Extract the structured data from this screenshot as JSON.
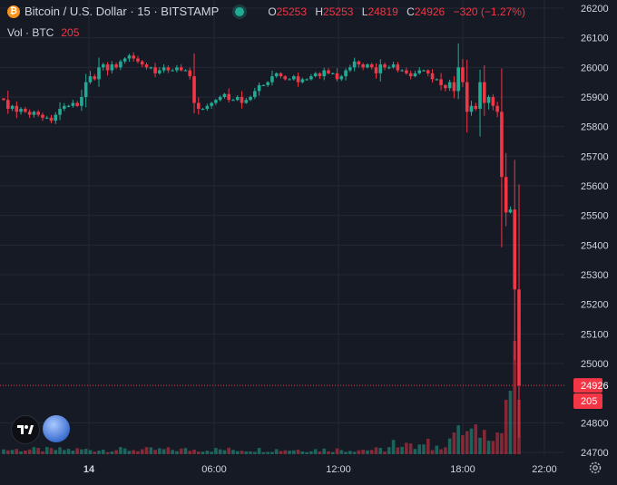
{
  "header": {
    "coin_symbol": "₿",
    "title": "Bitcoin / U.S. Dollar · 15 · BITSTAMP",
    "ohlc": {
      "o_label": "O",
      "o_value": "25253",
      "h_label": "H",
      "h_value": "25253",
      "l_label": "L",
      "l_value": "24819",
      "c_label": "C",
      "c_value": "24926",
      "change": "−320 (−1.27%)"
    },
    "volume": {
      "label": "Vol · BTC",
      "value": "205"
    }
  },
  "price_axis": {
    "ticks": [
      "26200",
      "26100",
      "26000",
      "25900",
      "25800",
      "25700",
      "25600",
      "25500",
      "25400",
      "25300",
      "25200",
      "25100",
      "25000",
      "24800",
      "24700"
    ]
  },
  "time_axis": {
    "ticks": [
      "14",
      "06:00",
      "12:00",
      "18:00",
      "22:00"
    ]
  },
  "price_label": "24926",
  "volume_label": "205",
  "icons": [
    "tradingview-logo-icon",
    "moon-avatar-icon",
    "settings-gear-icon"
  ],
  "colors": {
    "background": "#161a25",
    "up": "#22ab94",
    "down": "#f23645",
    "grid": "#242836",
    "text": "#d1d4dc",
    "price_line": "#f23645"
  },
  "chart_data": {
    "type": "candlestick",
    "symbol": "BTCUSD",
    "exchange": "BITSTAMP",
    "interval_minutes": 15,
    "ylim": [
      24700,
      26200
    ],
    "x_ticks": [
      "14",
      "06:00",
      "12:00",
      "18:00",
      "22:00"
    ],
    "close_series": [
      25890,
      25860,
      25870,
      25850,
      25860,
      25850,
      25840,
      25850,
      25840,
      25830,
      25830,
      25820,
      25840,
      25860,
      25870,
      25870,
      25880,
      25870,
      25900,
      25950,
      25970,
      25960,
      26000,
      26010,
      25990,
      26010,
      26000,
      26020,
      26030,
      26040,
      26030,
      26020,
      26010,
      26000,
      26000,
      25980,
      25990,
      26000,
      25990,
      25990,
      26000,
      25990,
      25990,
      25970,
      25880,
      25860,
      25860,
      25870,
      25880,
      25890,
      25900,
      25910,
      25890,
      25890,
      25900,
      25880,
      25890,
      25900,
      25920,
      25940,
      25940,
      25950,
      25970,
      25980,
      25970,
      25960,
      25960,
      25970,
      25950,
      25960,
      25960,
      25970,
      25980,
      25970,
      25990,
      25980,
      25980,
      25960,
      25970,
      25990,
      26000,
      26020,
      26010,
      26000,
      26010,
      26000,
      25980,
      26010,
      26000,
      26000,
      26010,
      25990,
      25990,
      25980,
      25970,
      25980,
      25990,
      25990,
      25980,
      25960,
      25960,
      25940,
      25930,
      25950,
      25920,
      26000,
      25950,
      25850,
      25870,
      25860,
      25950,
      25880,
      25900,
      25870,
      25850,
      25630,
      25510,
      25520,
      25250,
      24926
    ],
    "volume_series": [
      0,
      0,
      0,
      0,
      0,
      0,
      0,
      0,
      0,
      0,
      0,
      0,
      0,
      0,
      0,
      0,
      0,
      0,
      0,
      0,
      0,
      0,
      0,
      0,
      0,
      0,
      0,
      0,
      0,
      0,
      0,
      0,
      0,
      0,
      0,
      0,
      0,
      0,
      0,
      0,
      0,
      0,
      0,
      0,
      10,
      0,
      0,
      0,
      0,
      0,
      0,
      0,
      0,
      0,
      0,
      0,
      0,
      0,
      0,
      0,
      0,
      0,
      0,
      0,
      0,
      0,
      0,
      0,
      0,
      0,
      0,
      0,
      0,
      0,
      0,
      0,
      0,
      0,
      0,
      0,
      0,
      0,
      0,
      0,
      0,
      0,
      0,
      0,
      0,
      0,
      0,
      0,
      0,
      0,
      0,
      0,
      0,
      0,
      0,
      0,
      0,
      0,
      0,
      0,
      0,
      0,
      0,
      0,
      0,
      0,
      0,
      0,
      0,
      0,
      0,
      0,
      0,
      0,
      0,
      205
    ],
    "last_price": 24926,
    "last_volume": 205
  }
}
